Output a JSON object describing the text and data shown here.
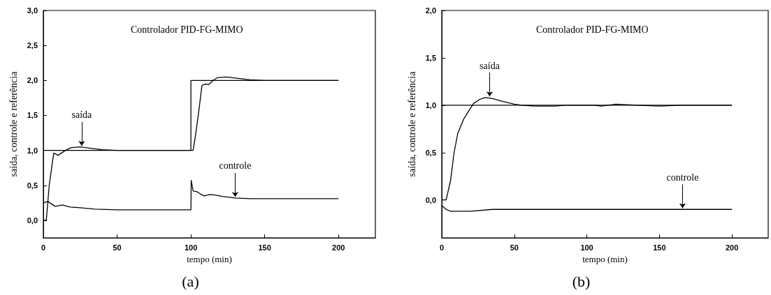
{
  "chart_data": [
    {
      "type": "line",
      "title": "Controlador PID-FG-MIMO",
      "xlabel": "tempo (min)",
      "ylabel": "saída, controle e referência",
      "annotations": [
        {
          "text": "saída",
          "x": 26,
          "y": 1.05
        },
        {
          "text": "controle",
          "x": 130,
          "y": 0.32
        },
        "(a)"
      ],
      "xlim": [
        0,
        225
      ],
      "ylim": [
        -0.25,
        3.0
      ],
      "xticks": [
        0,
        50,
        100,
        150,
        200
      ],
      "yticks": [
        {
          "value": 0,
          "label": "0,0"
        },
        {
          "value": 0.5,
          "label": "0,5"
        },
        {
          "value": 1,
          "label": "1,0"
        },
        {
          "value": 1.5,
          "label": "1,5"
        },
        {
          "value": 2,
          "label": "2,0"
        },
        {
          "value": 2.5,
          "label": "2,5"
        },
        {
          "value": 3,
          "label": "3,0"
        }
      ],
      "grid": false,
      "marker": "none",
      "line_style": "solid",
      "series": [
        {
          "color": "#000000",
          "x": [
            0,
            100,
            100,
            200
          ],
          "values": [
            1,
            1,
            2,
            2
          ]
        },
        {
          "color": "#000000",
          "x": [
            0,
            2,
            4,
            7,
            10,
            15,
            19,
            25,
            32,
            40,
            50,
            100,
            101.5,
            103,
            105,
            107.5,
            110,
            112,
            115,
            118,
            124,
            132,
            140,
            150,
            200
          ],
          "values": [
            0,
            0,
            0.5,
            0.96,
            0.93,
            1.0,
            1.04,
            1.05,
            1.03,
            1.01,
            1.0,
            1.0,
            1.0,
            1.2,
            1.5,
            1.93,
            1.95,
            1.94,
            2.0,
            2.04,
            2.05,
            2.03,
            2.01,
            2.0,
            2.0
          ]
        },
        {
          "color": "#000000",
          "x": [
            0,
            3,
            8,
            13,
            18,
            25,
            35,
            50,
            100,
            100.2,
            101.5,
            104,
            107,
            109,
            113,
            117,
            122,
            130,
            140,
            200
          ],
          "values": [
            0.25,
            0.27,
            0.2,
            0.22,
            0.19,
            0.18,
            0.16,
            0.15,
            0.15,
            0.57,
            0.42,
            0.41,
            0.37,
            0.35,
            0.37,
            0.36,
            0.34,
            0.32,
            0.31,
            0.31
          ]
        }
      ]
    },
    {
      "type": "line",
      "title": "Controlador PID-FG-MIMO",
      "xlabel": "tempo (min)",
      "ylabel": "saída, controle e referência",
      "annotations": [
        {
          "text": "saída",
          "x": 33,
          "y": 1.08
        },
        {
          "text": "controle",
          "x": 166,
          "y": -0.1
        },
        "(b)"
      ],
      "xlim": [
        0,
        225
      ],
      "ylim": [
        -0.4,
        2.0
      ],
      "xticks": [
        0,
        50,
        100,
        150,
        200
      ],
      "yticks": [
        {
          "value": 0,
          "label": "0,0"
        },
        {
          "value": 0.5,
          "label": "0,5"
        },
        {
          "value": 1,
          "label": "1,0"
        },
        {
          "value": 1.5,
          "label": "1,5"
        },
        {
          "value": 2,
          "label": "2,0"
        }
      ],
      "grid": false,
      "marker": "none",
      "line_style": "solid",
      "series": [
        {
          "color": "#000000",
          "x": [
            0,
            200
          ],
          "values": [
            1,
            1
          ]
        },
        {
          "color": "#000000",
          "x": [
            0,
            3,
            6,
            8.5,
            11,
            15,
            19,
            22,
            26,
            30,
            35,
            42,
            50,
            55,
            65,
            78,
            85,
            105,
            110,
            120,
            135,
            150,
            165,
            200
          ],
          "values": [
            0,
            0,
            0.2,
            0.5,
            0.7,
            0.85,
            0.95,
            1.02,
            1.06,
            1.08,
            1.07,
            1.04,
            1.01,
            1.0,
            0.99,
            0.99,
            1.0,
            1.0,
            0.99,
            1.01,
            1.0,
            0.99,
            1.0,
            1.0
          ]
        },
        {
          "color": "#000000",
          "x": [
            0,
            3,
            6,
            20,
            35,
            200
          ],
          "values": [
            -0.06,
            -0.1,
            -0.12,
            -0.12,
            -0.1,
            -0.1
          ]
        }
      ]
    }
  ]
}
